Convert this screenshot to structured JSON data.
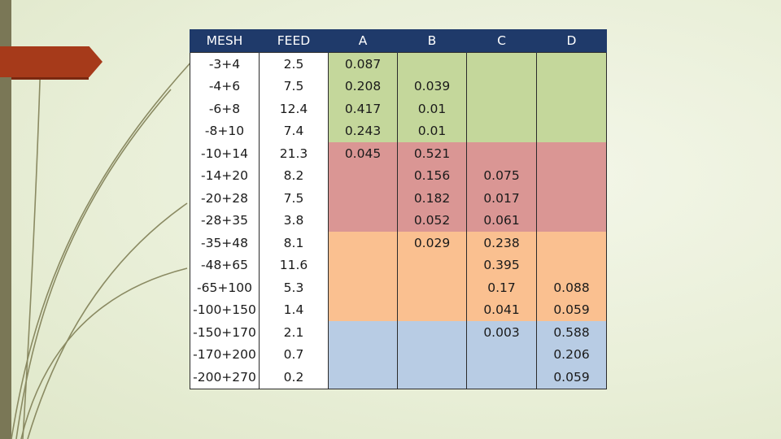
{
  "table": {
    "headers": [
      "MESH",
      "FEED",
      "A",
      "B",
      "C",
      "D"
    ],
    "rows": [
      {
        "mesh": "-3+4",
        "feed": "2.5",
        "a": "0.087",
        "b": "",
        "c": "",
        "d": "",
        "group": "green"
      },
      {
        "mesh": "-4+6",
        "feed": "7.5",
        "a": "0.208",
        "b": "0.039",
        "c": "",
        "d": "",
        "group": "green"
      },
      {
        "mesh": "-6+8",
        "feed": "12.4",
        "a": "0.417",
        "b": "0.01",
        "c": "",
        "d": "",
        "group": "green"
      },
      {
        "mesh": "-8+10",
        "feed": "7.4",
        "a": "0.243",
        "b": "0.01",
        "c": "",
        "d": "",
        "group": "green"
      },
      {
        "mesh": "-10+14",
        "feed": "21.3",
        "a": "0.045",
        "b": "0.521",
        "c": "",
        "d": "",
        "group": "red"
      },
      {
        "mesh": "-14+20",
        "feed": "8.2",
        "a": "",
        "b": "0.156",
        "c": "0.075",
        "d": "",
        "group": "red"
      },
      {
        "mesh": "-20+28",
        "feed": "7.5",
        "a": "",
        "b": "0.182",
        "c": "0.017",
        "d": "",
        "group": "red"
      },
      {
        "mesh": "-28+35",
        "feed": "3.8",
        "a": "",
        "b": "0.052",
        "c": "0.061",
        "d": "",
        "group": "red"
      },
      {
        "mesh": "-35+48",
        "feed": "8.1",
        "a": "",
        "b": "0.029",
        "c": "0.238",
        "d": "",
        "group": "orange"
      },
      {
        "mesh": "-48+65",
        "feed": "11.6",
        "a": "",
        "b": "",
        "c": "0.395",
        "d": "",
        "group": "orange"
      },
      {
        "mesh": "-65+100",
        "feed": "5.3",
        "a": "",
        "b": "",
        "c": "0.17",
        "d": "0.088",
        "group": "orange"
      },
      {
        "mesh": "-100+150",
        "feed": "1.4",
        "a": "",
        "b": "",
        "c": "0.041",
        "d": "0.059",
        "group": "orange"
      },
      {
        "mesh": "-150+170",
        "feed": "2.1",
        "a": "",
        "b": "",
        "c": "0.003",
        "d": "0.588",
        "group": "blue"
      },
      {
        "mesh": "-170+200",
        "feed": "0.7",
        "a": "",
        "b": "",
        "c": "",
        "d": "0.206",
        "group": "blue"
      },
      {
        "mesh": "-200+270",
        "feed": "0.2",
        "a": "",
        "b": "",
        "c": "",
        "d": "0.059",
        "group": "blue"
      }
    ]
  },
  "colors": {
    "header": "#1f3a6a",
    "green": "#c4d79b",
    "red": "#da9694",
    "orange": "#fac090",
    "blue": "#b8cce4",
    "arrow": "#a63a1a",
    "left_bar": "#7a7756"
  }
}
